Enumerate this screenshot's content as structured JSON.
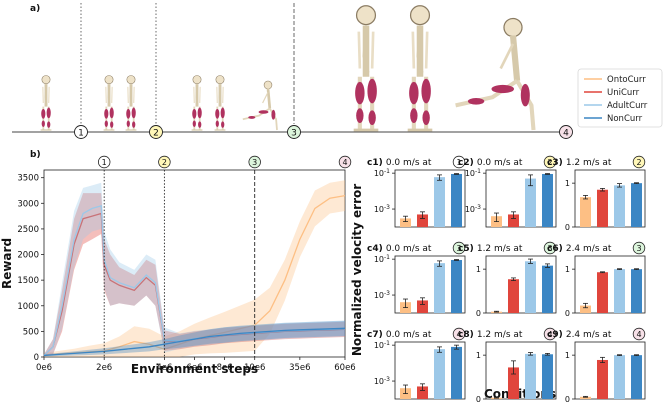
{
  "panel_a": {
    "label": "a)",
    "stage_markers": [
      {
        "num": "1",
        "color": "#ffffff"
      },
      {
        "num": "2",
        "color": "#fff7b8"
      },
      {
        "num": "3",
        "color": "#dcf5dc"
      },
      {
        "num": "4",
        "color": "#f7e1e8"
      }
    ]
  },
  "legend": {
    "entries": [
      {
        "name": "OntoCurr",
        "color": "#fdbf84"
      },
      {
        "name": "UniCurr",
        "color": "#e0453c"
      },
      {
        "name": "AdultCurr",
        "color": "#9cc8e8"
      },
      {
        "name": "NonCurr",
        "color": "#3b86c4"
      }
    ]
  },
  "chart_data": [
    {
      "id": "b",
      "type": "line",
      "title": "b)",
      "xlabel": "Environment steps",
      "ylabel": "Reward",
      "xticks": [
        "0e6",
        "2e6",
        "4e6",
        "6e6",
        "8e6",
        "10e6",
        "35e6",
        "60e6"
      ],
      "xtick_pos": [
        0,
        2,
        4,
        5,
        6,
        7,
        8.5,
        10
      ],
      "x_axis_note": "piecewise axis: 0-4e6 linear, 4e6-10e6 linear, 10e6-60e6 compressed",
      "yticks": [
        0,
        500,
        1000,
        1500,
        2000,
        2500,
        3000,
        3500
      ],
      "ylim": [
        0,
        3650
      ],
      "stage_lines": [
        {
          "x": 2,
          "num": "1",
          "style": "dotted"
        },
        {
          "x": 4,
          "num": "2",
          "style": "dotted"
        },
        {
          "x": 7,
          "num": "3",
          "style": "dashed"
        },
        {
          "x": 10,
          "num": "4",
          "style": "dashed"
        }
      ],
      "series": [
        {
          "name": "OntoCurr",
          "color": "#fdbf84",
          "x": [
            0,
            0.5,
            1,
            1.5,
            2,
            2.5,
            3,
            3.5,
            4,
            4.5,
            5,
            5.5,
            6,
            6.5,
            7,
            7.5,
            8,
            8.5,
            9,
            9.5,
            10
          ],
          "y": [
            40,
            60,
            80,
            100,
            120,
            200,
            300,
            250,
            150,
            250,
            350,
            420,
            480,
            550,
            620,
            900,
            1500,
            2300,
            2900,
            3100,
            3150
          ],
          "band": [
            40,
            60,
            80,
            120,
            150,
            200,
            300,
            300,
            250,
            250,
            300,
            350,
            400,
            450,
            500,
            450,
            400,
            350,
            350,
            300,
            300
          ]
        },
        {
          "name": "UniCurr",
          "color": "#e0453c",
          "x": [
            0,
            0.3,
            0.6,
            1.0,
            1.3,
            1.6,
            1.9,
            2.0,
            2.2,
            2.5,
            3.0,
            3.4,
            3.7,
            4.0,
            4.5,
            5,
            5.5,
            6,
            6.5,
            7,
            7.5,
            8,
            8.5,
            9,
            9.5,
            10
          ],
          "y": [
            30,
            200,
            900,
            2200,
            2700,
            2750,
            2800,
            1800,
            1500,
            1400,
            1300,
            1550,
            1400,
            320,
            300,
            350,
            380,
            420,
            440,
            460,
            480,
            500,
            510,
            520,
            530,
            540
          ],
          "band": [
            20,
            150,
            400,
            500,
            500,
            450,
            400,
            500,
            500,
            350,
            300,
            350,
            400,
            200,
            150,
            150,
            150,
            150,
            150,
            150,
            150,
            150,
            150,
            150,
            150,
            150
          ]
        },
        {
          "name": "AdultCurr",
          "color": "#9cc8e8",
          "x": [
            0,
            0.3,
            0.6,
            1.0,
            1.3,
            1.6,
            1.9,
            2.0,
            2.2,
            2.5,
            3.0,
            3.4,
            3.7,
            4.0,
            4.5,
            5,
            5.5,
            6,
            6.5,
            7,
            7.5,
            8,
            8.5,
            9,
            9.5,
            10
          ],
          "y": [
            30,
            200,
            1000,
            2300,
            2800,
            2900,
            2950,
            1900,
            1550,
            1450,
            1350,
            1600,
            1450,
            330,
            310,
            360,
            390,
            430,
            450,
            470,
            490,
            510,
            520,
            530,
            540,
            550
          ],
          "band": [
            20,
            150,
            450,
            550,
            500,
            450,
            450,
            550,
            550,
            400,
            350,
            400,
            450,
            250,
            150,
            150,
            150,
            150,
            150,
            150,
            150,
            150,
            150,
            150,
            150,
            150
          ]
        },
        {
          "name": "NonCurr",
          "color": "#3b86c4",
          "x": [
            0,
            0.5,
            1,
            1.5,
            2,
            2.5,
            3,
            3.5,
            4,
            4.5,
            5,
            5.5,
            6,
            6.5,
            7,
            7.5,
            8,
            8.5,
            9,
            9.5,
            10
          ],
          "y": [
            30,
            50,
            70,
            90,
            110,
            140,
            170,
            200,
            250,
            300,
            350,
            400,
            430,
            460,
            480,
            500,
            520,
            530,
            540,
            550,
            560
          ],
          "band": [
            20,
            30,
            40,
            50,
            60,
            70,
            80,
            90,
            100,
            120,
            130,
            140,
            150,
            150,
            150,
            150,
            150,
            150,
            150,
            150,
            150
          ]
        }
      ]
    },
    {
      "id": "c",
      "type": "bar",
      "ylabel": "Normalized velocity error",
      "xlabel": "Conditions",
      "categories": [
        "OntoCurr",
        "UniCurr",
        "AdultCurr",
        "NonCurr"
      ],
      "colors": [
        "#fdbf84",
        "#e0453c",
        "#9cc8e8",
        "#3b86c4"
      ],
      "panels": [
        {
          "label": "c1)",
          "title": "0.0 m/s at",
          "stage": "1",
          "scale": "log",
          "yticks": [
            "10^-1",
            "10^-3"
          ],
          "values": [
            0.0003,
            0.0005,
            0.06,
            0.09
          ],
          "err": [
            0.0001,
            0.0002,
            0.02,
            0.005
          ]
        },
        {
          "label": "c2)",
          "title": "0.0 m/s at",
          "stage": "2",
          "scale": "log",
          "yticks": [
            "10^-1",
            "10^-3"
          ],
          "values": [
            0.0004,
            0.0005,
            0.05,
            0.09
          ],
          "err": [
            0.0002,
            0.0002,
            0.03,
            0.005
          ]
        },
        {
          "label": "c3)",
          "title": "1.2 m/s at",
          "stage": "2",
          "scale": "linear",
          "yticks": [
            "1",
            "0"
          ],
          "values": [
            0.68,
            0.85,
            0.95,
            1.0
          ],
          "err": [
            0.04,
            0.03,
            0.04,
            0.01
          ]
        },
        {
          "label": "c4)",
          "title": "0.0 m/s at",
          "stage": "3",
          "scale": "log",
          "yticks": [
            "10^-1",
            "10^-3"
          ],
          "values": [
            0.0004,
            0.0005,
            0.06,
            0.09
          ],
          "err": [
            0.0002,
            0.0002,
            0.02,
            0.005
          ]
        },
        {
          "label": "c5)",
          "title": "1.2 m/s at",
          "stage": "3",
          "scale": "linear",
          "yticks": [
            "1",
            "0"
          ],
          "values": [
            0.03,
            0.77,
            1.18,
            1.08
          ],
          "err": [
            0.01,
            0.03,
            0.05,
            0.04
          ]
        },
        {
          "label": "c6)",
          "title": "2.4 m/s at",
          "stage": "3",
          "scale": "linear",
          "yticks": [
            "1",
            "0"
          ],
          "values": [
            0.17,
            0.93,
            1.0,
            1.0
          ],
          "err": [
            0.05,
            0.01,
            0.01,
            0.01
          ]
        },
        {
          "label": "c7)",
          "title": "0.0 m/s at",
          "stage": "4",
          "scale": "log",
          "yticks": [
            "10^-1",
            "10^-3"
          ],
          "values": [
            0.0004,
            0.0005,
            0.06,
            0.08
          ],
          "err": [
            0.0002,
            0.0002,
            0.02,
            0.02
          ]
        },
        {
          "label": "c8)",
          "title": "1.2 m/s at",
          "stage": "4",
          "scale": "linear",
          "yticks": [
            "1",
            "0"
          ],
          "values": [
            0.03,
            0.72,
            1.03,
            1.02
          ],
          "err": [
            0.01,
            0.15,
            0.03,
            0.02
          ]
        },
        {
          "label": "c9)",
          "title": "2.4 m/s at",
          "stage": "4",
          "scale": "linear",
          "yticks": [
            "1",
            "0"
          ],
          "values": [
            0.05,
            0.89,
            1.0,
            1.0
          ],
          "err": [
            0.01,
            0.06,
            0.01,
            0.01
          ]
        }
      ]
    }
  ]
}
